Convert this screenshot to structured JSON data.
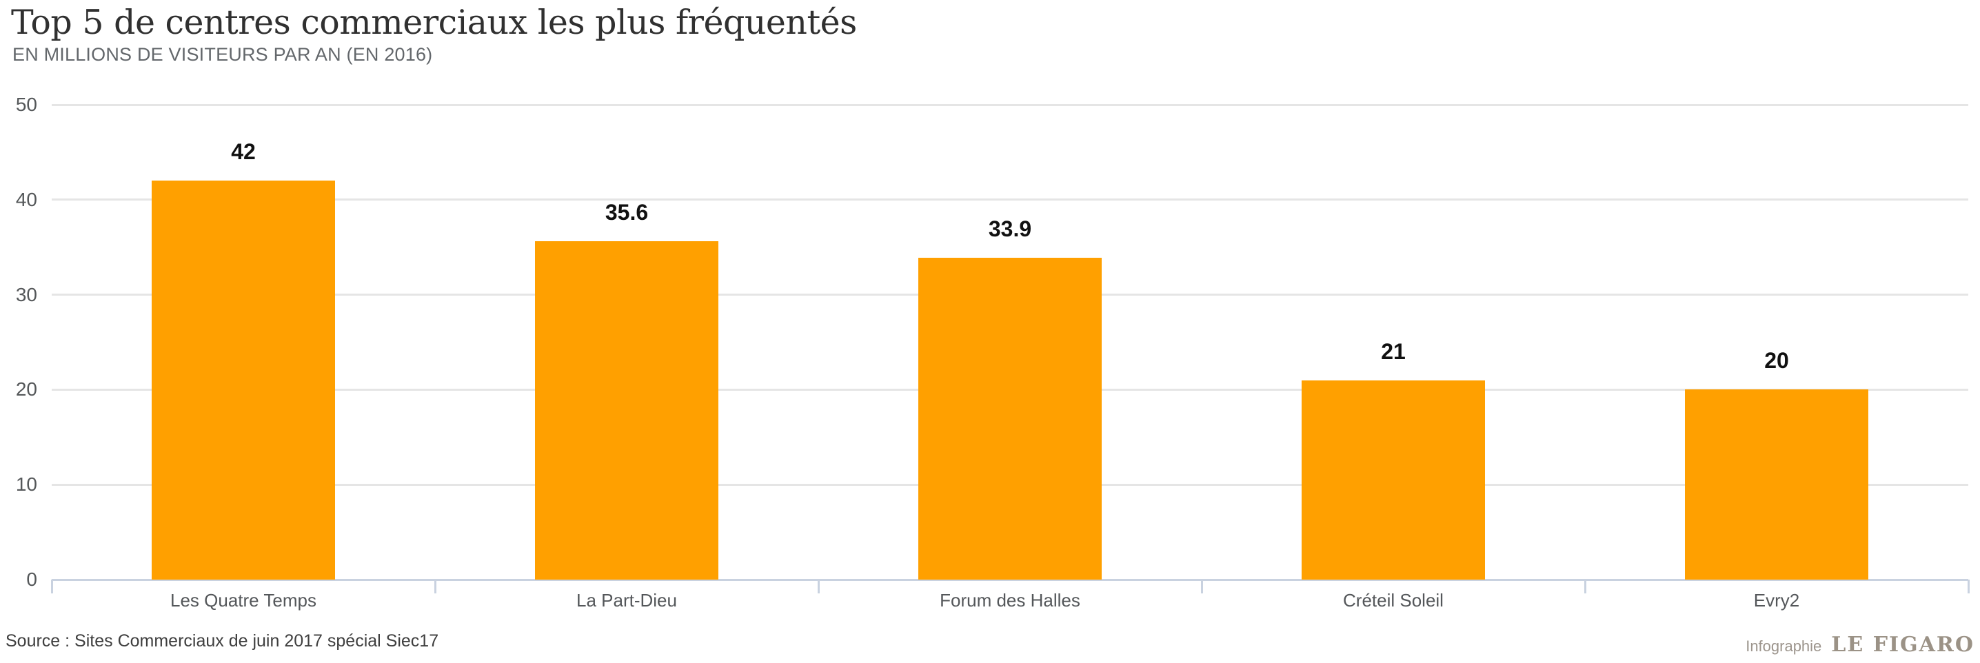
{
  "header": {
    "title": "Top 5 de centres commerciaux les plus fréquentés",
    "subtitle": "EN MILLIONS DE VISITEURS PAR AN (EN 2016)"
  },
  "chart_data": {
    "type": "bar",
    "title": "Top 5 de centres commerciaux les plus fréquentés",
    "subtitle": "EN MILLIONS DE VISITEURS PAR AN (EN 2016)",
    "categories": [
      "Les Quatre Temps",
      "La Part-Dieu",
      "Forum des Halles",
      "Créteil Soleil",
      "Evry2"
    ],
    "values": [
      42,
      35.6,
      33.9,
      21,
      20
    ],
    "value_labels": [
      "42",
      "35.6",
      "33.9",
      "21",
      "20"
    ],
    "xlabel": "",
    "ylabel": "",
    "ylim": [
      0,
      50
    ],
    "yticks": [
      0,
      10,
      20,
      30,
      40,
      50
    ],
    "grid": true,
    "legend": false,
    "bar_color": "#ffa000"
  },
  "colors": {
    "bar": "#ffa000",
    "grid": "#e5e5e5",
    "axis": "#c9d2e0",
    "title": "#303030",
    "subtitle": "#63676b",
    "tick_label": "#55585a",
    "value_label": "#111111",
    "source": "#3f3f3f",
    "credit_brand": "#9b9286"
  },
  "footer": {
    "source": "Source : Sites Commerciaux de juin 2017 spécial Siec17",
    "credit_prefix": "Infographie",
    "credit_brand": "LE FIGARO"
  }
}
